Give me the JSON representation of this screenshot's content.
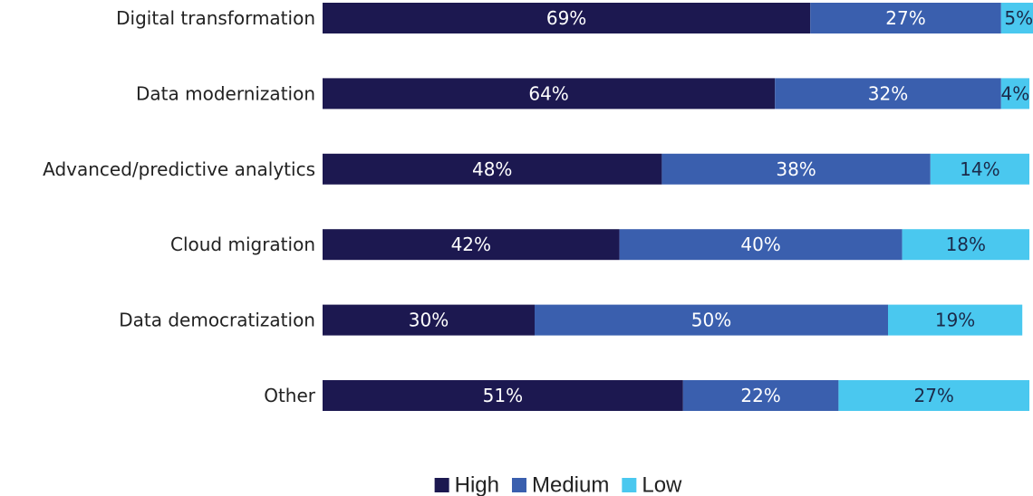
{
  "chart_data": {
    "type": "bar",
    "orientation": "horizontal",
    "stacked": true,
    "categories": [
      "Digital transformation",
      "Data modernization",
      "Advanced/predictive analytics",
      "Cloud migration",
      "Data democratization",
      "Other"
    ],
    "series": [
      {
        "name": "High",
        "color": "#1c1850",
        "label_color": "#ffffff",
        "values": [
          69,
          64,
          48,
          42,
          30,
          51
        ]
      },
      {
        "name": "Medium",
        "color": "#3a5fae",
        "label_color": "#ffffff",
        "values": [
          27,
          32,
          38,
          40,
          50,
          22
        ]
      },
      {
        "name": "Low",
        "color": "#4ac8ef",
        "label_color": "#1b2a4a",
        "values": [
          5,
          4,
          14,
          18,
          19,
          27
        ]
      }
    ],
    "value_suffix": "%",
    "xlim": [
      0,
      100
    ],
    "grid": false,
    "legend_position": "bottom"
  }
}
